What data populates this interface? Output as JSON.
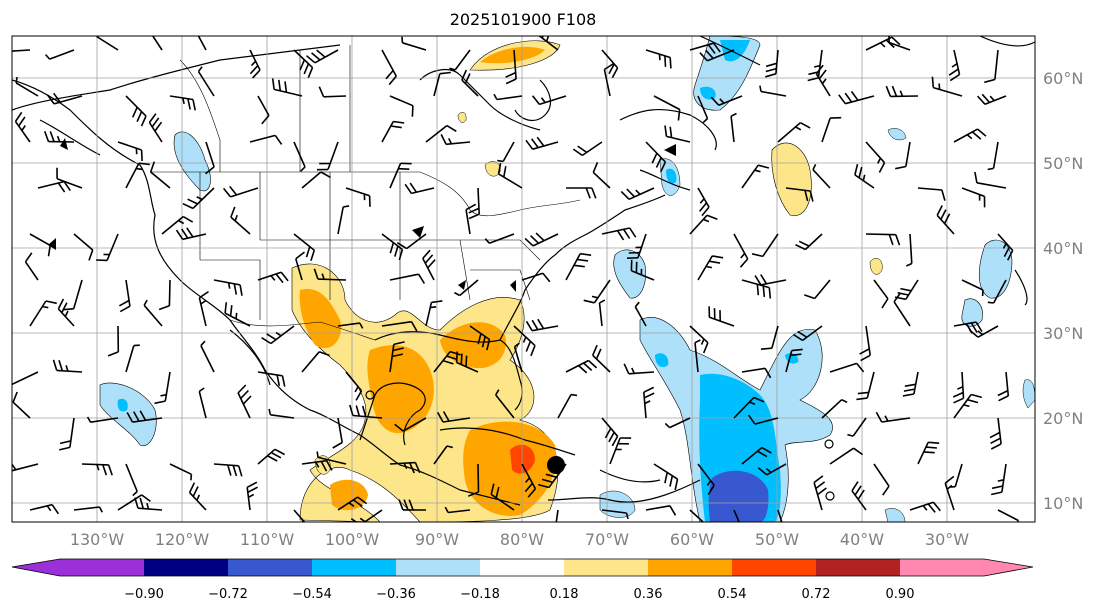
{
  "title": "2025101900 F108",
  "map": {
    "lon_ticks": [
      "130°W",
      "120°W",
      "110°W",
      "100°W",
      "90°W",
      "80°W",
      "70°W",
      "60°W",
      "50°W",
      "40°W",
      "30°W"
    ],
    "lat_ticks": [
      "60°N",
      "50°N",
      "40°N",
      "30°N",
      "20°N",
      "10°N"
    ],
    "gridline_color": "#a0a0a0",
    "coastline_color": "#000000"
  },
  "colorbar": {
    "ticks": [
      "−0.90",
      "−0.72",
      "−0.54",
      "−0.36",
      "−0.18",
      "0.18",
      "0.36",
      "0.54",
      "0.72",
      "0.90"
    ],
    "colors": [
      "#9b30d9",
      "#000080",
      "#3858cf",
      "#00bfff",
      "#aee0fa",
      "#ffffff",
      "#fde68a",
      "#ffa500",
      "#ff4500",
      "#b22222",
      "#ff88b0"
    ]
  }
}
